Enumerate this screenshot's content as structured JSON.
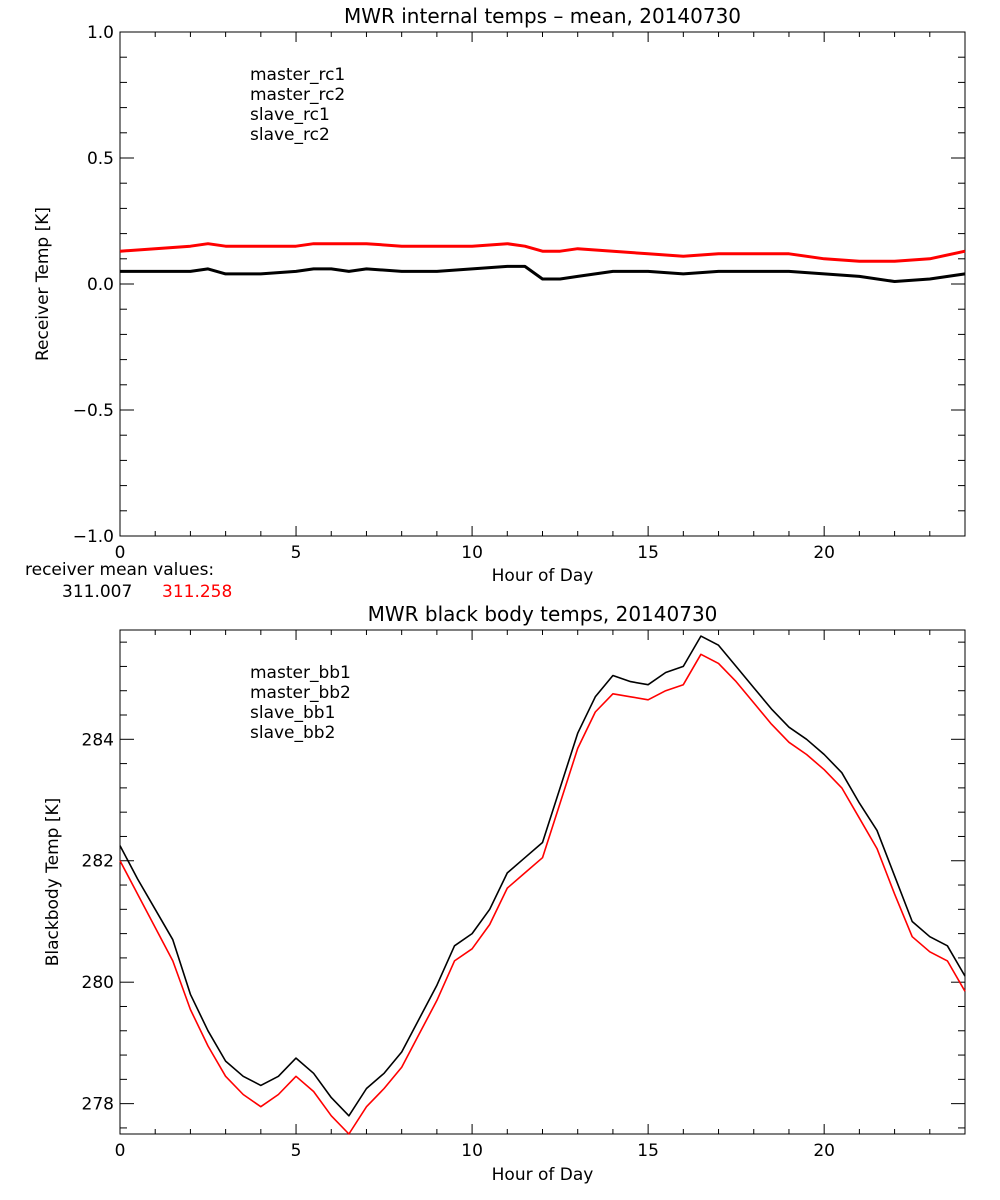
{
  "chart_data": [
    {
      "type": "line",
      "title": "MWR internal temps – mean, 20140730",
      "xlabel": "Hour of Day",
      "ylabel": "Receiver Temp [K]",
      "xlim": [
        0,
        24
      ],
      "ylim": [
        -1.0,
        1.0
      ],
      "xticks": [
        0,
        5,
        10,
        15,
        20
      ],
      "xtick_labels": [
        "0",
        "5",
        "10",
        "15",
        "20"
      ],
      "yticks": [
        -1.0,
        -0.5,
        0.0,
        0.5,
        1.0
      ],
      "ytick_labels": [
        "−1.0",
        "−0.5",
        "0.0",
        "0.5",
        "1.0"
      ],
      "legend": "top-left",
      "series": [
        {
          "name": "master_rc1",
          "color": "#000000",
          "x": [
            0,
            1,
            2,
            2.5,
            3,
            4,
            5,
            5.5,
            6,
            6.5,
            7,
            8,
            9,
            10,
            11,
            11.5,
            12,
            12.5,
            13,
            14,
            15,
            16,
            17,
            18,
            19,
            20,
            21,
            22,
            23,
            24
          ],
          "values": [
            0.05,
            0.05,
            0.05,
            0.06,
            0.04,
            0.04,
            0.05,
            0.06,
            0.06,
            0.05,
            0.06,
            0.05,
            0.05,
            0.06,
            0.07,
            0.07,
            0.02,
            0.02,
            0.03,
            0.05,
            0.05,
            0.04,
            0.05,
            0.05,
            0.05,
            0.04,
            0.03,
            0.01,
            0.02,
            0.04
          ]
        },
        {
          "name": "master_rc2",
          "color": "#ff0000",
          "x": [
            0,
            1,
            2,
            2.5,
            3,
            4,
            5,
            5.5,
            6,
            6.5,
            7,
            8,
            9,
            10,
            11,
            11.5,
            12,
            12.5,
            13,
            14,
            15,
            16,
            17,
            18,
            19,
            20,
            21,
            22,
            23,
            24
          ],
          "values": [
            0.13,
            0.14,
            0.15,
            0.16,
            0.15,
            0.15,
            0.15,
            0.16,
            0.16,
            0.16,
            0.16,
            0.15,
            0.15,
            0.15,
            0.16,
            0.15,
            0.13,
            0.13,
            0.14,
            0.13,
            0.12,
            0.11,
            0.12,
            0.12,
            0.12,
            0.1,
            0.09,
            0.09,
            0.1,
            0.13
          ]
        },
        {
          "name": "slave_rc1",
          "color": "#2222cc",
          "x": [],
          "values": []
        },
        {
          "name": "slave_rc2",
          "color": "#22cc22",
          "x": [],
          "values": []
        }
      ]
    },
    {
      "type": "line",
      "title": "MWR black body temps, 20140730",
      "xlabel": "Hour of Day",
      "ylabel": "Blackbody Temp [K]",
      "xlim": [
        0,
        24
      ],
      "ylim": [
        277.5,
        285.8
      ],
      "xticks": [
        0,
        5,
        10,
        15,
        20
      ],
      "xtick_labels": [
        "0",
        "5",
        "10",
        "15",
        "20"
      ],
      "yticks": [
        278,
        280,
        282,
        284
      ],
      "ytick_labels": [
        "278",
        "280",
        "282",
        "284"
      ],
      "legend": "top-left",
      "series": [
        {
          "name": "master_bb1",
          "color": "#000000",
          "x": [
            0,
            0.5,
            1,
            1.5,
            2,
            2.5,
            3,
            3.5,
            4,
            4.5,
            5,
            5.5,
            6,
            6.5,
            7,
            7.5,
            8,
            8.5,
            9,
            9.5,
            10,
            10.5,
            11,
            11.5,
            12,
            12.5,
            13,
            13.5,
            14,
            14.5,
            15,
            15.5,
            16,
            16.5,
            17,
            17.5,
            18,
            18.5,
            19,
            19.5,
            20,
            20.5,
            21,
            21.5,
            22,
            22.5,
            23,
            23.5,
            24
          ],
          "values": [
            282.25,
            281.7,
            281.2,
            280.7,
            279.8,
            279.2,
            278.7,
            278.45,
            278.3,
            278.45,
            278.75,
            278.5,
            278.1,
            277.8,
            278.25,
            278.5,
            278.85,
            279.4,
            279.95,
            280.6,
            280.8,
            281.2,
            281.8,
            282.05,
            282.3,
            283.2,
            284.1,
            284.7,
            285.05,
            284.95,
            284.9,
            285.1,
            285.2,
            285.7,
            285.55,
            285.2,
            284.85,
            284.5,
            284.2,
            284.0,
            283.75,
            283.45,
            282.95,
            282.5,
            281.75,
            281.0,
            280.75,
            280.6,
            280.1
          ]
        },
        {
          "name": "master_bb2",
          "color": "#ff0000",
          "x": [
            0,
            0.5,
            1,
            1.5,
            2,
            2.5,
            3,
            3.5,
            4,
            4.5,
            5,
            5.5,
            6,
            6.5,
            7,
            7.5,
            8,
            8.5,
            9,
            9.5,
            10,
            10.5,
            11,
            11.5,
            12,
            12.5,
            13,
            13.5,
            14,
            14.5,
            15,
            15.5,
            16,
            16.5,
            17,
            17.5,
            18,
            18.5,
            19,
            19.5,
            20,
            20.5,
            21,
            21.5,
            22,
            22.5,
            23,
            23.5,
            24
          ],
          "values": [
            282.0,
            281.45,
            280.9,
            280.35,
            279.55,
            278.95,
            278.45,
            278.15,
            277.95,
            278.15,
            278.45,
            278.2,
            277.8,
            277.5,
            277.95,
            278.25,
            278.6,
            279.15,
            279.7,
            280.35,
            280.55,
            280.95,
            281.55,
            281.8,
            282.05,
            282.95,
            283.85,
            284.45,
            284.75,
            284.7,
            284.65,
            284.8,
            284.9,
            285.4,
            285.25,
            284.95,
            284.6,
            284.25,
            283.95,
            283.75,
            283.5,
            283.2,
            282.7,
            282.2,
            281.45,
            280.75,
            280.5,
            280.35,
            279.85
          ]
        },
        {
          "name": "slave_bb1",
          "color": "#2222cc",
          "x": [],
          "values": []
        },
        {
          "name": "slave_bb2",
          "color": "#22cc22",
          "x": [],
          "values": []
        }
      ]
    }
  ],
  "receiver_mean": {
    "label": "receiver mean values:",
    "value1": "311.007",
    "value2": "311.258",
    "color1": "#000000",
    "color2": "#ff0000"
  }
}
